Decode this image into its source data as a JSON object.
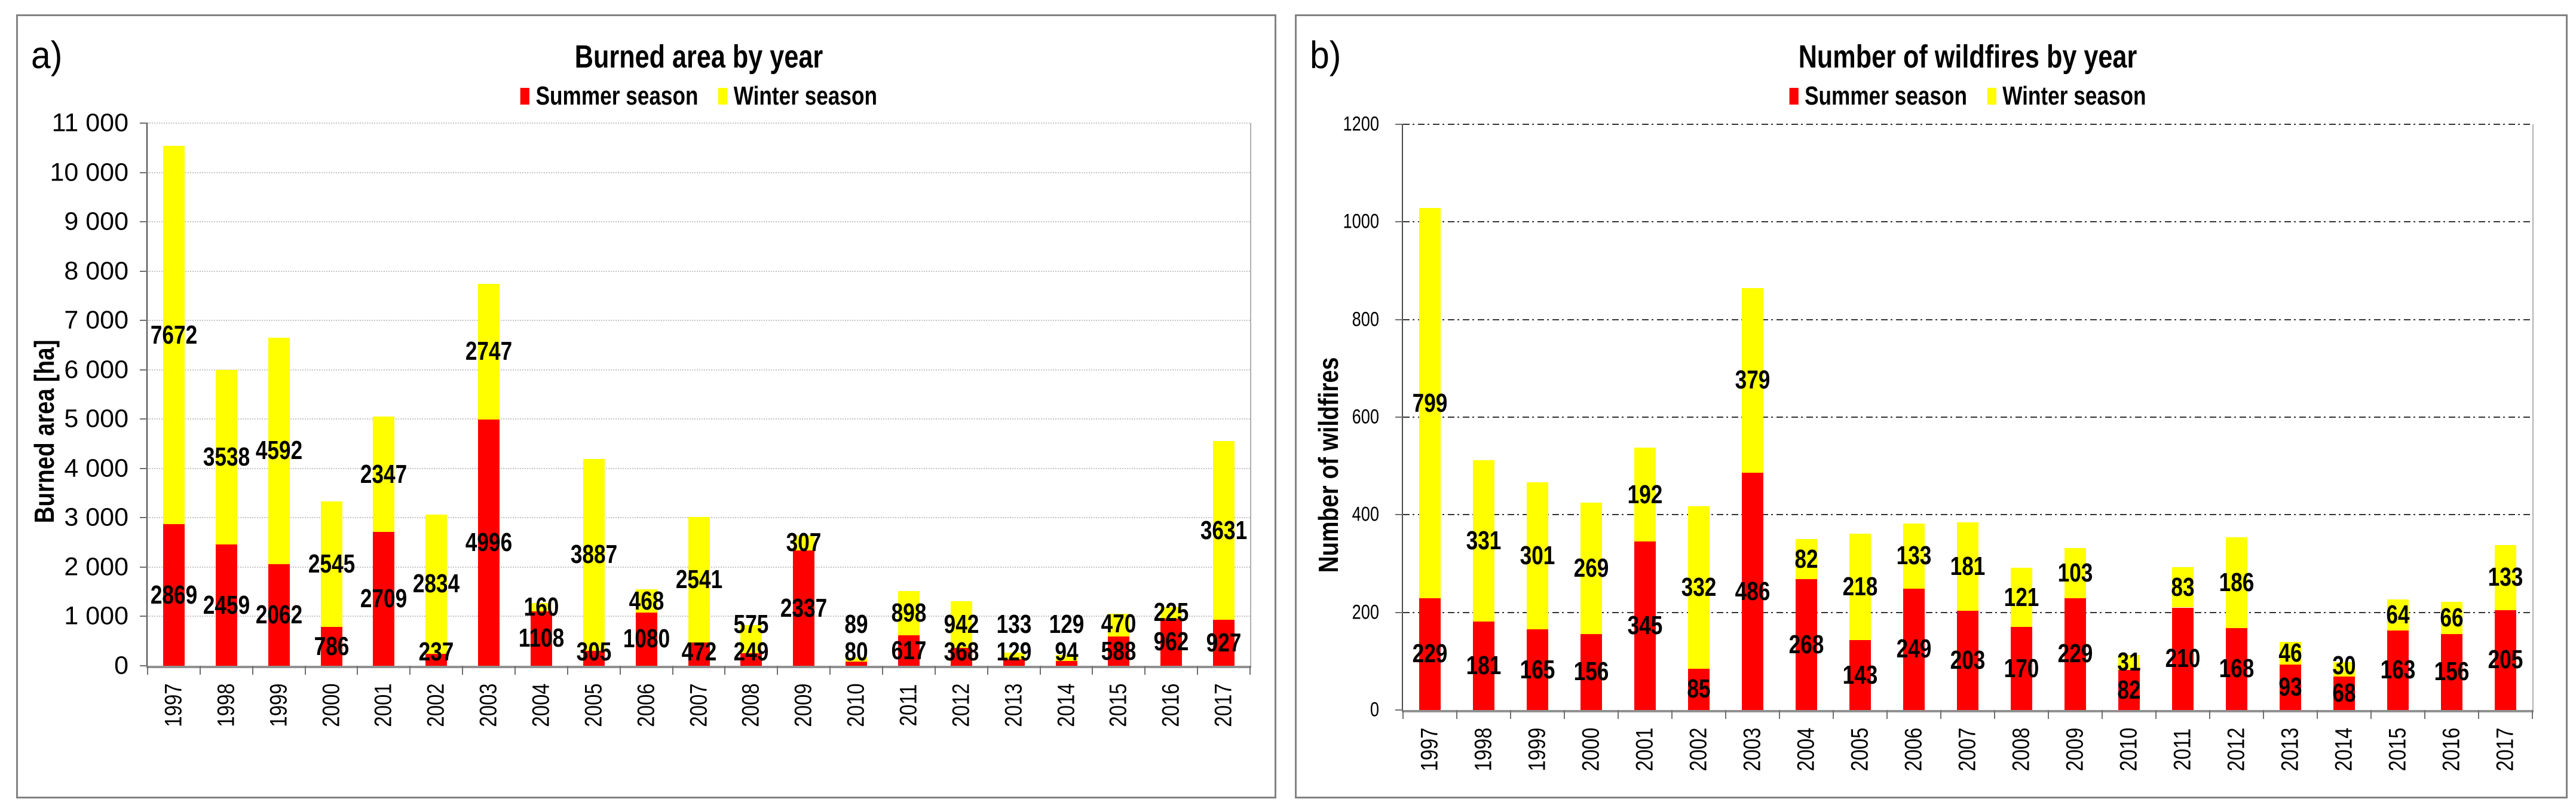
{
  "chart_data": [
    {
      "type": "bar",
      "stacked": true,
      "panel_label": "a)",
      "title": "Burned area by year",
      "ylabel": "Burned area [ha]",
      "ylim": [
        0,
        11000
      ],
      "ytick_step": 1000,
      "yticks": [
        "0",
        "1 000",
        "2 000",
        "3 000",
        "4 000",
        "5 000",
        "6 000",
        "7 000",
        "8 000",
        "9 000",
        "10 000",
        "11 000"
      ],
      "grid": "horizontal-dotted",
      "legend_position": "top",
      "categories": [
        "1997",
        "1998",
        "1999",
        "2000",
        "2001",
        "2002",
        "2003",
        "2004",
        "2005",
        "2006",
        "2007",
        "2008",
        "2009",
        "2010",
        "2011",
        "2012",
        "2013",
        "2014",
        "2015",
        "2016",
        "2017"
      ],
      "series": [
        {
          "name": "Summer season",
          "color": "#FF0000",
          "values": [
            2869,
            2459,
            2062,
            786,
            2709,
            237,
            4996,
            1108,
            305,
            1080,
            472,
            249,
            2337,
            80,
            617,
            368,
            129,
            94,
            588,
            962,
            927
          ]
        },
        {
          "name": "Winter season",
          "color": "#FFFF00",
          "values": [
            7672,
            3538,
            4592,
            2545,
            2347,
            2834,
            2747,
            160,
            3887,
            468,
            2541,
            575,
            307,
            89,
            898,
            942,
            133,
            129,
            470,
            225,
            3631
          ]
        }
      ]
    },
    {
      "type": "bar",
      "stacked": true,
      "panel_label": "b)",
      "title": "Number of wildfires by year",
      "ylabel": "Number of wildfires",
      "ylim": [
        0,
        1200
      ],
      "ytick_step": 200,
      "yticks": [
        "0",
        "200",
        "400",
        "600",
        "800",
        "1000",
        "1200"
      ],
      "grid": "horizontal-dash-dot",
      "legend_position": "top",
      "categories": [
        "1997",
        "1998",
        "1999",
        "2000",
        "2001",
        "2002",
        "2003",
        "2004",
        "2005",
        "2006",
        "2007",
        "2008",
        "2009",
        "2010",
        "2011",
        "2012",
        "2013",
        "2014",
        "2015",
        "2016",
        "2017"
      ],
      "series": [
        {
          "name": "Summer season",
          "color": "#FF0000",
          "values": [
            229,
            181,
            165,
            156,
            345,
            85,
            486,
            268,
            143,
            249,
            203,
            170,
            229,
            82,
            210,
            168,
            93,
            68,
            163,
            156,
            205
          ]
        },
        {
          "name": "Winter season",
          "color": "#FFFF00",
          "values": [
            799,
            331,
            301,
            269,
            192,
            332,
            379,
            82,
            218,
            133,
            181,
            121,
            103,
            31,
            83,
            186,
            46,
            30,
            64,
            66,
            133
          ]
        }
      ]
    }
  ]
}
